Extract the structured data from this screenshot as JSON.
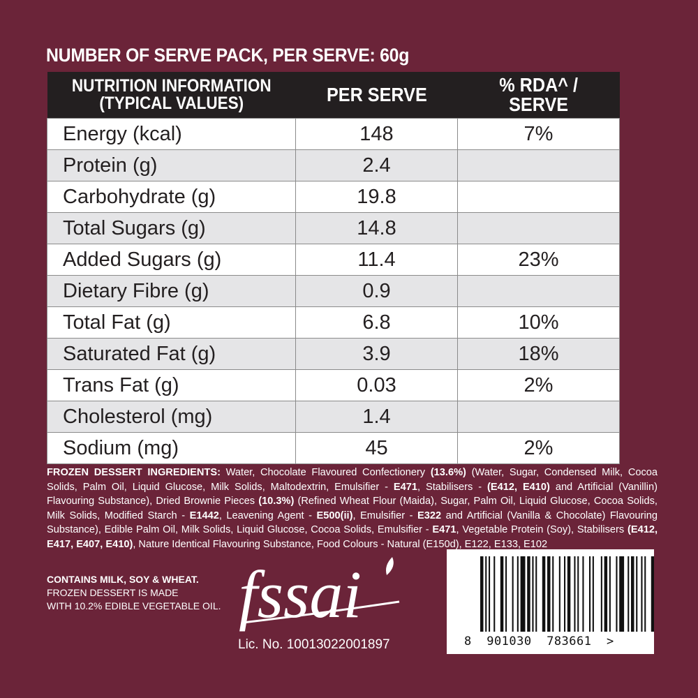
{
  "header": {
    "serve_pack": "NUMBER OF SERVE PACK, PER SERVE: 60g"
  },
  "table": {
    "col1_line1": "NUTRITION INFORMATION",
    "col1_line2": "(TYPICAL VALUES)",
    "col2": "PER SERVE",
    "col3_line1": "% RDA^ /",
    "col3_line2": "SERVE",
    "rows": [
      {
        "name": "Energy (kcal)",
        "value": "148",
        "rda": "7%"
      },
      {
        "name": "Protein (g)",
        "value": "2.4",
        "rda": ""
      },
      {
        "name": "Carbohydrate (g)",
        "value": "19.8",
        "rda": ""
      },
      {
        "name": "Total Sugars (g)",
        "value": "14.8",
        "rda": ""
      },
      {
        "name": "Added Sugars (g)",
        "value": "11.4",
        "rda": "23%"
      },
      {
        "name": "Dietary Fibre (g)",
        "value": "0.9",
        "rda": ""
      },
      {
        "name": "Total Fat (g)",
        "value": "6.8",
        "rda": "10%"
      },
      {
        "name": "Saturated Fat (g)",
        "value": "3.9",
        "rda": "18%"
      },
      {
        "name": "Trans Fat (g)",
        "value": "0.03",
        "rda": "2%"
      },
      {
        "name": "Cholesterol (mg)",
        "value": "1.4",
        "rda": ""
      },
      {
        "name": "Sodium (mg)",
        "value": "45",
        "rda": "2%"
      }
    ]
  },
  "ingredients": {
    "parts": [
      {
        "t": "FROZEN DESSERT INGREDIENTS:",
        "b": true
      },
      {
        "t": " Water, Chocolate Flavoured Confectionery ",
        "b": false
      },
      {
        "t": "(13.6%)",
        "b": true
      },
      {
        "t": " (Water, Sugar, Condensed Milk, Cocoa Solids, Palm Oil, Liquid Glucose, Milk Solids, Maltodextrin, Emulsifier - ",
        "b": false
      },
      {
        "t": "E471",
        "b": true
      },
      {
        "t": ", Stabilisers - ",
        "b": false
      },
      {
        "t": "(E412, E410)",
        "b": true
      },
      {
        "t": " and Artificial (Vanillin) Flavouring Substance), Dried Brownie Pieces ",
        "b": false
      },
      {
        "t": "(10.3%)",
        "b": true
      },
      {
        "t": " (Refined Wheat Flour (Maida), Sugar, Palm Oil, Liquid Glucose, Cocoa Solids, Milk Solids, Modified Starch - ",
        "b": false
      },
      {
        "t": "E1442",
        "b": true
      },
      {
        "t": ", Leavening Agent - ",
        "b": false
      },
      {
        "t": "E500(ii)",
        "b": true
      },
      {
        "t": ", Emulsifier - ",
        "b": false
      },
      {
        "t": "E322",
        "b": true
      },
      {
        "t": " and Artificial (Vanilla & Chocolate) Flavouring Substance), Edible Palm Oil, Milk Solids, Liquid Glucose, Cocoa Solids, Emulsifier - ",
        "b": false
      },
      {
        "t": "E471",
        "b": true
      },
      {
        "t": ", Vegetable Protein (Soy), Stabilisers ",
        "b": false
      },
      {
        "t": "(E412, E417, E407, E410)",
        "b": true
      },
      {
        "t": ", Nature Identical Flavouring Substance, Food Colours - Natural (E150d), E122, E133, E102",
        "b": false
      }
    ]
  },
  "allergen": {
    "line1": "CONTAINS MILK, SOY & WHEAT.",
    "line2": "FROZEN DESSERT IS MADE",
    "line3": "WITH 10.2% EDIBLE VEGETABLE OIL."
  },
  "fssai": {
    "logo_text": "fssai",
    "license": "Lic. No. 10013022001897"
  },
  "barcode": {
    "digits": "8  901030  783661  >",
    "bars": [
      2,
      1,
      1,
      1,
      1,
      2,
      1,
      3,
      2,
      1,
      1,
      3,
      1,
      2,
      1,
      1,
      3,
      1,
      2,
      1,
      1,
      1,
      1,
      3,
      2,
      1,
      2,
      1,
      1,
      3,
      1,
      2,
      1,
      1,
      2,
      2,
      1,
      1,
      1,
      2,
      1,
      3,
      1,
      1,
      1,
      4,
      1,
      1,
      2,
      1,
      1,
      3,
      1,
      1,
      3,
      2,
      1,
      1,
      2,
      1,
      1,
      2,
      1,
      1,
      1,
      3,
      2,
      1,
      1,
      2,
      1,
      2,
      1,
      1
    ]
  }
}
